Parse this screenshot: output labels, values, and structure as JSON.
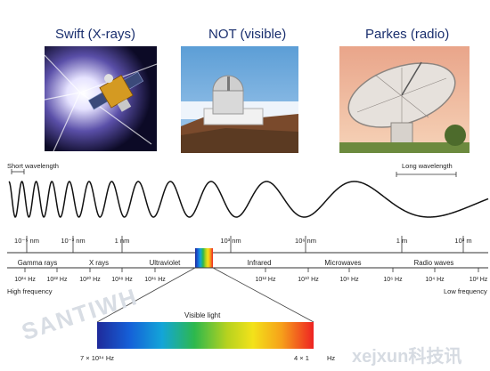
{
  "panels": [
    {
      "title": "Swift (X-rays)",
      "icon": "satellite-photo"
    },
    {
      "title": "NOT (visible)",
      "icon": "observatory-photo"
    },
    {
      "title": "Parkes (radio)",
      "icon": "radio-dish-photo"
    }
  ],
  "wave": {
    "short_label": "Short wavelength",
    "long_label": "Long wavelength"
  },
  "wavelength_ticks": [
    {
      "label": "10⁻⁵ nm"
    },
    {
      "label": "10⁻³ nm"
    },
    {
      "label": "1 nm"
    },
    {
      "label": "10³ nm"
    },
    {
      "label": "10⁶ nm"
    },
    {
      "label": "1 m"
    },
    {
      "label": "10³ m"
    }
  ],
  "bands": [
    "Gamma rays",
    "X rays",
    "Ultraviolet",
    "Infrared",
    "Microwaves",
    "Radio waves"
  ],
  "frequency_ticks": [
    "10²⁴ Hz",
    "10²² Hz",
    "10²⁰ Hz",
    "10¹⁸ Hz",
    "10¹⁶ Hz",
    "10¹² Hz",
    "10¹⁰ Hz",
    "10⁸ Hz",
    "10⁶ Hz",
    "10⁴ Hz",
    "10² Hz"
  ],
  "freq_labels": {
    "high": "High frequency",
    "low": "Low frequency"
  },
  "visible": {
    "label": "Visible light",
    "left_label": "7 × 10¹⁴ Hz",
    "right_label": "4 × 1",
    "right_suffix": "Hz"
  },
  "watermarks": [
    "SANTIWH",
    "xejxun科技讯"
  ],
  "colors": {
    "title": "#1a2f6e",
    "wave": "#111111",
    "spectrum": [
      "#1f2a9a",
      "#1560d8",
      "#13a5d8",
      "#2db84d",
      "#b6d21f",
      "#f3e21a",
      "#f6a11a",
      "#ee2323"
    ]
  }
}
